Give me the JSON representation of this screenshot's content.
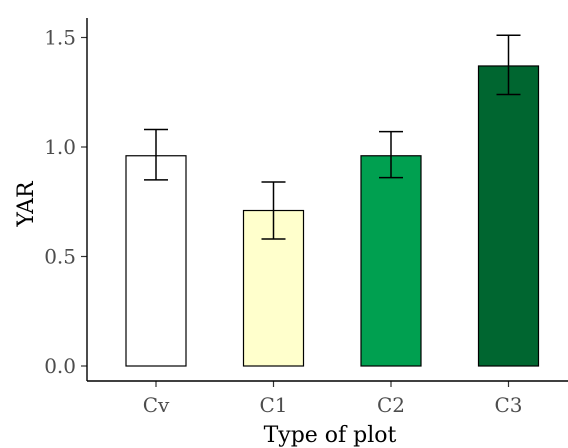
{
  "chart_data": {
    "type": "bar",
    "title": "",
    "xlabel": "Type of plot",
    "ylabel": "YAR",
    "categories": [
      "Cv",
      "C1",
      "C2",
      "C3"
    ],
    "values": [
      0.96,
      0.71,
      0.96,
      1.37
    ],
    "error_lower": [
      0.85,
      0.58,
      0.86,
      1.24
    ],
    "error_upper": [
      1.08,
      0.84,
      1.07,
      1.51
    ],
    "bar_colors": [
      "#ffffff",
      "#ffffcc",
      "#00a050",
      "#006630"
    ],
    "ylim": [
      0,
      1.6
    ],
    "yticks": [
      0.0,
      0.5,
      1.0,
      1.5
    ],
    "ytick_labels": [
      "0.0",
      "0.5",
      "1.0",
      "1.5"
    ],
    "grid": false,
    "legend": "none"
  }
}
